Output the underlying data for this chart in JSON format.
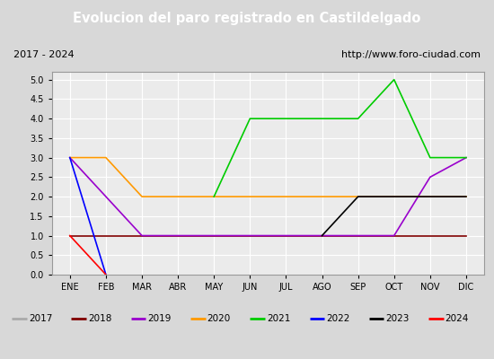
{
  "title": "Evolucion del paro registrado en Castildelgado",
  "subtitle_left": "2017 - 2024",
  "subtitle_right": "http://www.foro-ciudad.com",
  "months": [
    "ENE",
    "FEB",
    "MAR",
    "ABR",
    "MAY",
    "JUN",
    "JUL",
    "AGO",
    "SEP",
    "OCT",
    "NOV",
    "DIC"
  ],
  "series": {
    "2017": {
      "color": "#aaaaaa",
      "linewidth": 1.2,
      "data": {}
    },
    "2018": {
      "color": "#800000",
      "linewidth": 1.2,
      "data": {
        "1": 1,
        "2": 1,
        "3": 1,
        "4": 1,
        "5": 1,
        "6": 1,
        "7": 1,
        "8": 1,
        "9": 1,
        "10": 1,
        "11": 1,
        "12": 1
      }
    },
    "2019": {
      "color": "#9900cc",
      "linewidth": 1.2,
      "data": {
        "1": 3,
        "2": 2,
        "3": 1,
        "4": 1,
        "5": 1,
        "6": 1,
        "7": 1,
        "8": 1,
        "9": 1,
        "10": 1,
        "11": 2.5,
        "12": 3
      }
    },
    "2020": {
      "color": "#ff9900",
      "linewidth": 1.2,
      "data": {
        "1": 3,
        "2": 3,
        "3": 2,
        "4": 2,
        "5": 2,
        "6": 2,
        "7": 2,
        "8": 2,
        "9": 2,
        "10": 2,
        "11": 2,
        "12": 2
      }
    },
    "2021": {
      "color": "#00cc00",
      "linewidth": 1.2,
      "data": {
        "5": 2,
        "6": 4,
        "7": 4,
        "8": 4,
        "9": 4,
        "10": 5,
        "11": 3,
        "12": 3
      }
    },
    "2022": {
      "color": "#0000ff",
      "linewidth": 1.2,
      "data": {
        "1": 3,
        "2": 0
      }
    },
    "2023": {
      "color": "#000000",
      "linewidth": 1.2,
      "data": {
        "8": 1,
        "9": 2,
        "10": 2,
        "11": 2,
        "12": 2
      }
    },
    "2024": {
      "color": "#ff0000",
      "linewidth": 1.2,
      "data": {
        "1": 1,
        "2": 0
      }
    }
  },
  "ylim": [
    0.0,
    5.2
  ],
  "yticks": [
    0.0,
    0.5,
    1.0,
    1.5,
    2.0,
    2.5,
    3.0,
    3.5,
    4.0,
    4.5,
    5.0
  ],
  "background_color": "#d8d8d8",
  "plot_bg_color": "#ebebeb",
  "title_bg_color": "#4472c4",
  "title_color": "#ffffff",
  "header_bg_color": "#ffffff",
  "legend_order": [
    "2017",
    "2018",
    "2019",
    "2020",
    "2021",
    "2022",
    "2023",
    "2024"
  ]
}
